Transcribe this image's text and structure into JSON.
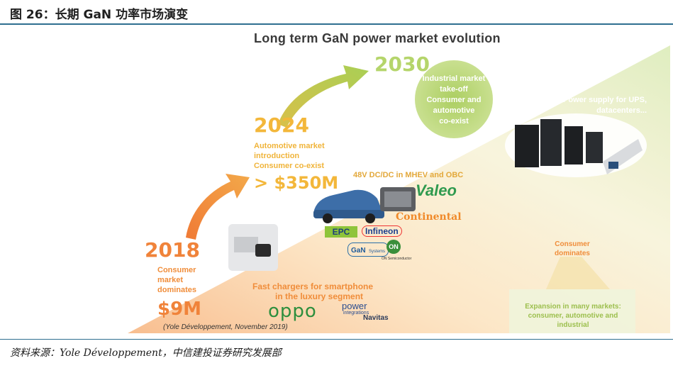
{
  "figure_title": "图 26：长期 GaN 功率市场演变",
  "source_note": "资料来源：Yole Développement，中信建投证券研究发展部",
  "chart_data": {
    "type": "timeline",
    "title": "Long term GaN power market evolution",
    "credit": "(Yole Développement, November 2019)",
    "stages": [
      {
        "year": "2018",
        "lines": [
          "Consumer",
          "market",
          "dominates"
        ],
        "market_size": "$9M",
        "application": [
          "Fast chargers for smartphone",
          "in the luxury segment"
        ],
        "logos": [
          "oppo",
          "power integrations",
          "Navitas"
        ]
      },
      {
        "year": "2024",
        "lines": [
          "Automotive market",
          "introduction",
          "Consumer co-exist"
        ],
        "market_size": "> $350M",
        "application": [
          "48V DC/DC in MHEV and OBC"
        ],
        "logos": [
          "Valeo",
          "Continental",
          "EPC",
          "Infineon",
          "GaN Systems",
          "ON Semiconductor"
        ]
      },
      {
        "year": "2030",
        "lines": [
          "Industrial market",
          "take-off",
          "Consumer and",
          "automotive",
          "co-exist"
        ],
        "application": [
          "Power supply for UPS,",
          "datacenters..."
        ]
      }
    ],
    "side_notes": {
      "consumer": [
        "Consumer",
        "dominates"
      ],
      "expansion": [
        "Expansion in many markets:",
        "consumer, automotive and",
        "industrial"
      ]
    }
  },
  "colors": {
    "orange": "#f0833a",
    "yellow": "#f3b73a",
    "green": "#b5d56b",
    "rule": "#2e6f90"
  },
  "logo_text": {
    "epc": "EPC",
    "infineon": "Infineon",
    "gan_systems": "GaN",
    "gan_systems_sub": "Systems",
    "on": "ON",
    "on_sub": "ON Semiconductor",
    "valeo": "Valeo",
    "continental": "Continental",
    "oppo": "oppo",
    "power": "power",
    "integrations": "integrations",
    "navitas": "Navitas"
  }
}
